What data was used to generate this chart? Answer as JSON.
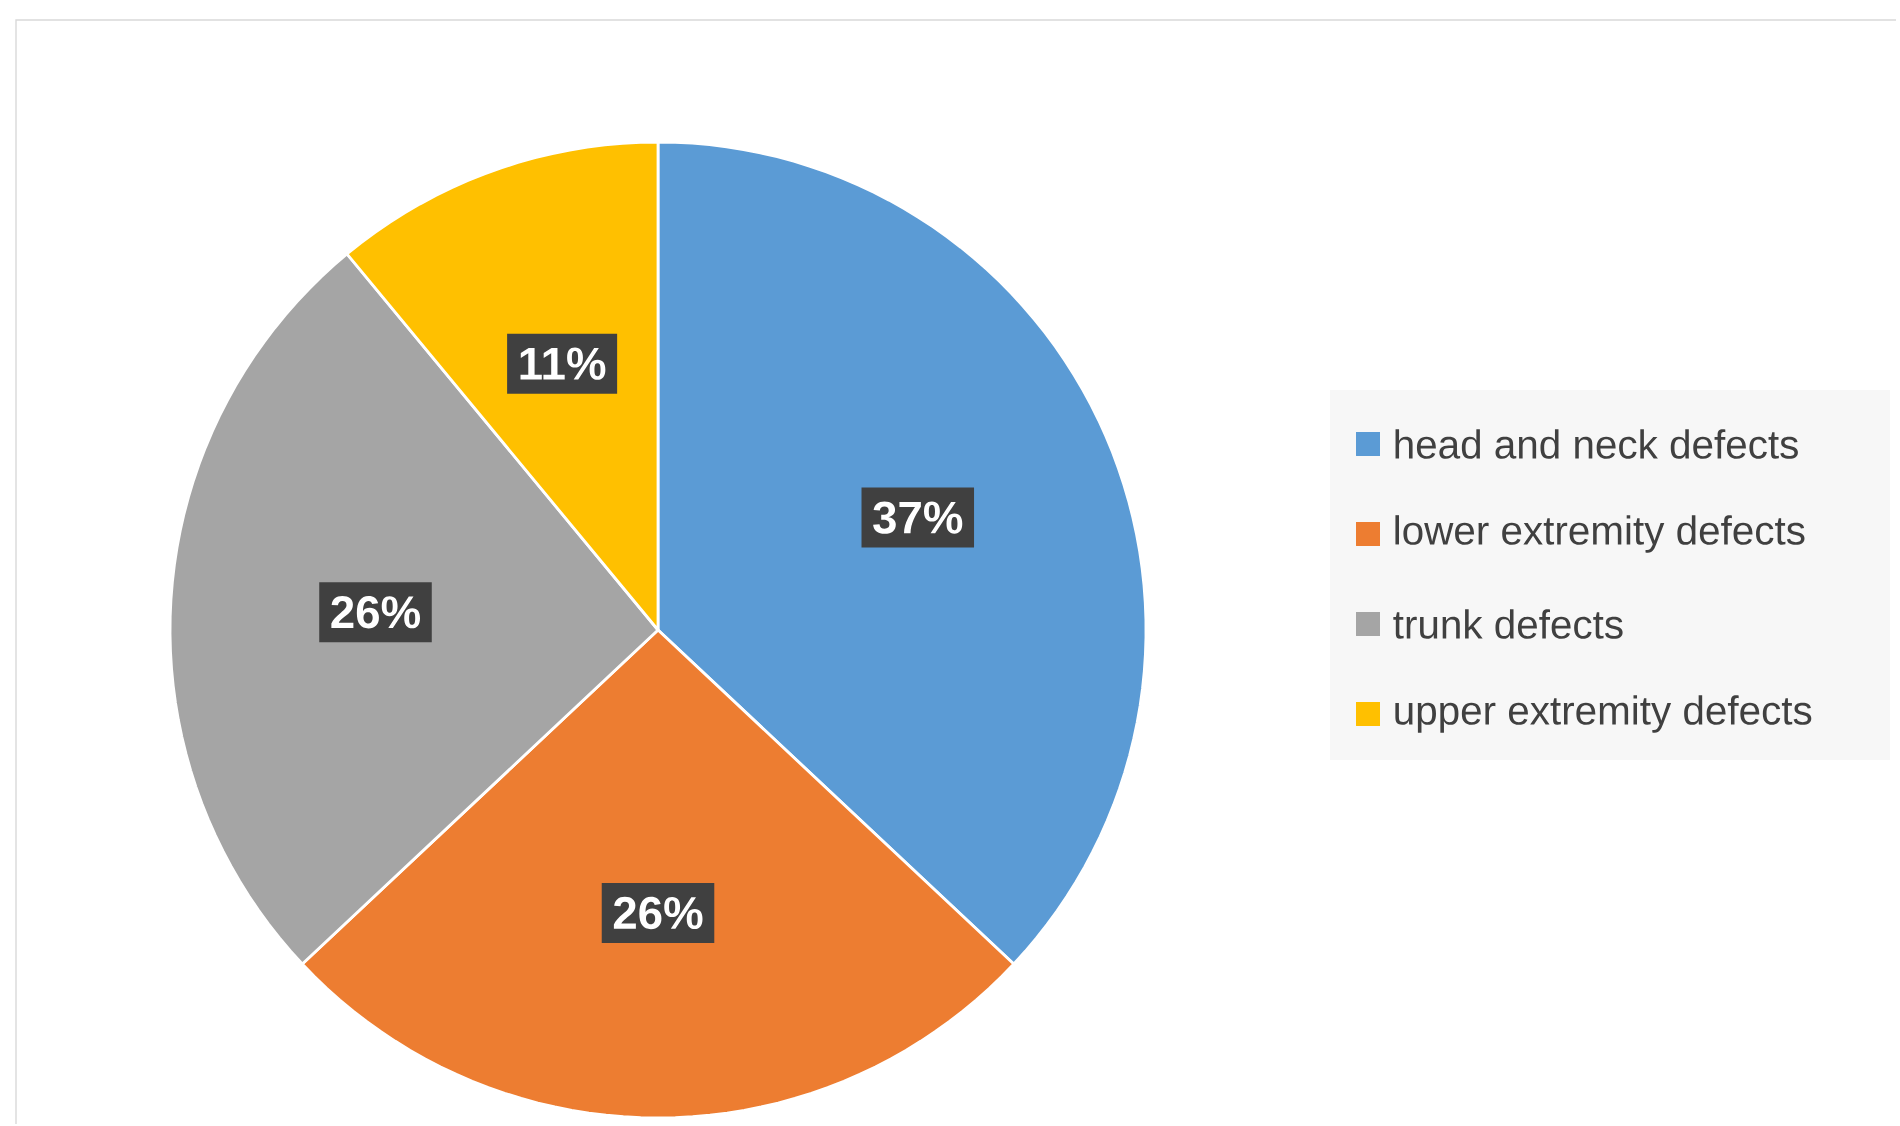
{
  "chart_data": {
    "type": "pie",
    "categories": [
      "head and neck defects",
      "lower extremity defects",
      "trunk defects",
      "upper extremity defects"
    ],
    "values": [
      37,
      26,
      26,
      11
    ],
    "colors": [
      "#5b9bd5",
      "#ed7d31",
      "#a5a5a5",
      "#ffc000"
    ],
    "value_labels": [
      "37%",
      "26%",
      "26%",
      "11%"
    ],
    "legend": "right"
  }
}
